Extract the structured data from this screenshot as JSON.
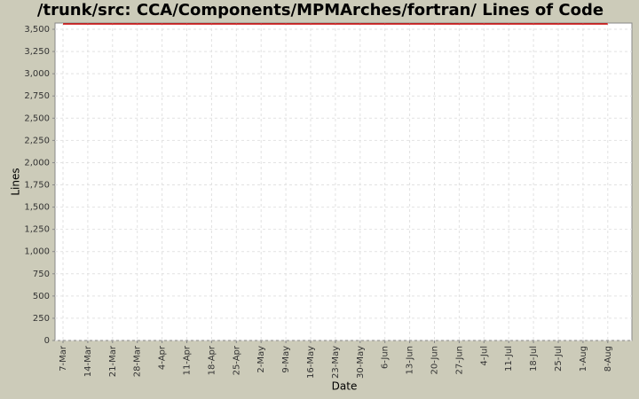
{
  "chart_data": {
    "type": "line",
    "title": "/trunk/src: CCA/Components/MPMArches/fortran/ Lines of Code",
    "x_label": "Date",
    "y_label": "Lines",
    "categories": [
      "7-Mar",
      "14-Mar",
      "21-Mar",
      "28-Mar",
      "4-Apr",
      "11-Apr",
      "18-Apr",
      "25-Apr",
      "2-May",
      "9-May",
      "16-May",
      "23-May",
      "30-May",
      "6-Jun",
      "13-Jun",
      "20-Jun",
      "27-Jun",
      "4-Jul",
      "11-Jul",
      "18-Jul",
      "25-Jul",
      "1-Aug",
      "8-Aug"
    ],
    "series": [
      {
        "name": "Lines",
        "color": "#cc0000",
        "values": [
          3560,
          3560,
          3560,
          3560,
          3560,
          3560,
          3560,
          3560,
          3560,
          3560,
          3560,
          3560,
          3560,
          3560,
          3560,
          3560,
          3560,
          3560,
          3560,
          3560,
          3560,
          3560,
          3560
        ]
      }
    ],
    "ylim": [
      0,
      3570
    ],
    "yticks": [
      0,
      250,
      500,
      750,
      {
        "value": 1000,
        "label": "1,000"
      },
      {
        "value": 1250,
        "label": "1,250"
      },
      {
        "value": 1500,
        "label": "1,500"
      },
      {
        "value": 1750,
        "label": "1,750"
      },
      {
        "value": 2000,
        "label": "2,000"
      },
      {
        "value": 2250,
        "label": "2,250"
      },
      {
        "value": 2500,
        "label": "2,500"
      },
      {
        "value": 2750,
        "label": "2,750"
      },
      {
        "value": 3000,
        "label": "3,000"
      },
      {
        "value": 3250,
        "label": "3,250"
      },
      {
        "value": 3500,
        "label": "3,500"
      }
    ],
    "grid": true
  }
}
